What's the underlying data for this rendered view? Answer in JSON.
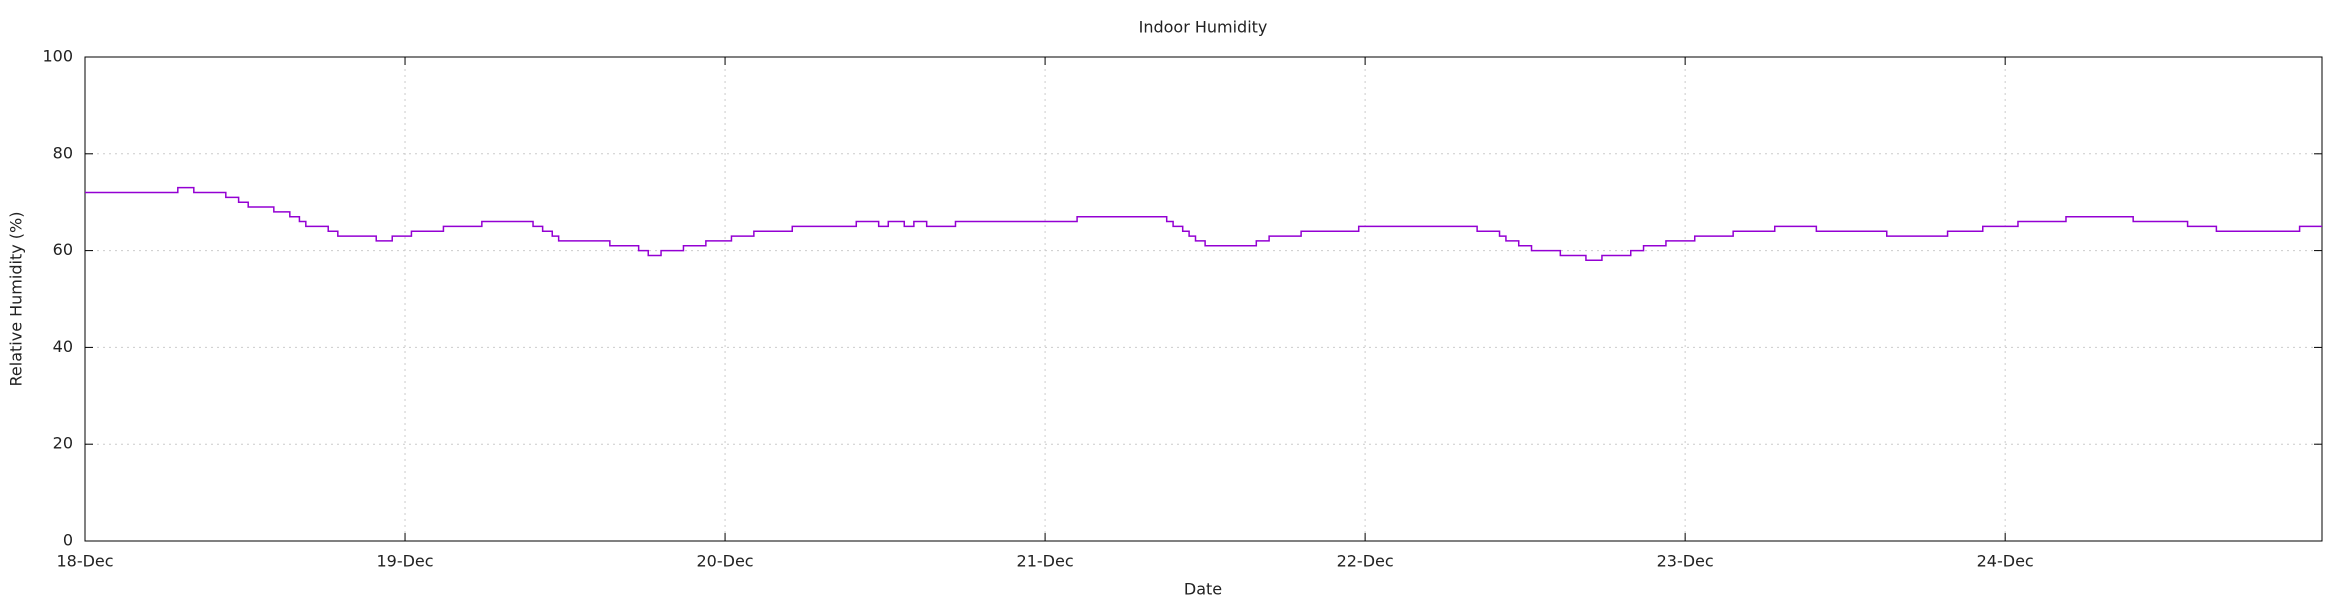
{
  "chart_data": {
    "type": "line",
    "title": "Indoor Humidity",
    "x_label": "Date",
    "y_label": "Relative Humidity (%)",
    "xlim": [
      0,
      6.99
    ],
    "ylim": [
      0,
      100
    ],
    "grid": true,
    "xticks": [
      {
        "value": 0,
        "label": "18-Dec"
      },
      {
        "value": 1,
        "label": "19-Dec"
      },
      {
        "value": 2,
        "label": "20-Dec"
      },
      {
        "value": 3,
        "label": "21-Dec"
      },
      {
        "value": 4,
        "label": "22-Dec"
      },
      {
        "value": 5,
        "label": "23-Dec"
      },
      {
        "value": 6,
        "label": "24-Dec"
      }
    ],
    "yticks": [
      0,
      20,
      40,
      60,
      80,
      100
    ],
    "series": [
      {
        "color": "#9400d3",
        "x": [
          0,
          0.29,
          0.29,
          0.34,
          0.34,
          0.44,
          0.44,
          0.48,
          0.48,
          0.51,
          0.51,
          0.59,
          0.59,
          0.64,
          0.64,
          0.67,
          0.67,
          0.69,
          0.69,
          0.76,
          0.76,
          0.79,
          0.79,
          0.91,
          0.91,
          0.96,
          0.96,
          1.02,
          1.02,
          1.12,
          1.12,
          1.24,
          1.24,
          1.4,
          1.4,
          1.43,
          1.43,
          1.46,
          1.46,
          1.48,
          1.48,
          1.64,
          1.64,
          1.73,
          1.73,
          1.76,
          1.76,
          1.8,
          1.8,
          1.87,
          1.87,
          1.94,
          1.94,
          2.02,
          2.02,
          2.09,
          2.09,
          2.21,
          2.21,
          2.41,
          2.41,
          2.48,
          2.48,
          2.51,
          2.51,
          2.56,
          2.56,
          2.59,
          2.59,
          2.63,
          2.63,
          2.72,
          2.72,
          3.1,
          3.1,
          3.38,
          3.38,
          3.4,
          3.4,
          3.43,
          3.43,
          3.45,
          3.45,
          3.47,
          3.47,
          3.5,
          3.5,
          3.66,
          3.66,
          3.7,
          3.7,
          3.8,
          3.8,
          3.98,
          3.98,
          4.35,
          4.35,
          4.42,
          4.42,
          4.44,
          4.44,
          4.48,
          4.48,
          4.52,
          4.52,
          4.61,
          4.61,
          4.69,
          4.69,
          4.74,
          4.74,
          4.83,
          4.83,
          4.87,
          4.87,
          4.94,
          4.94,
          5.03,
          5.03,
          5.15,
          5.15,
          5.28,
          5.28,
          5.41,
          5.41,
          5.63,
          5.63,
          5.82,
          5.82,
          5.93,
          5.93,
          6.04,
          6.04,
          6.19,
          6.19,
          6.4,
          6.4,
          6.57,
          6.57,
          6.66,
          6.66,
          6.92,
          6.92,
          6.99
        ],
        "values": [
          72,
          72,
          73,
          73,
          72,
          72,
          71,
          71,
          70,
          70,
          69,
          69,
          68,
          68,
          67,
          67,
          66,
          66,
          65,
          65,
          64,
          64,
          63,
          63,
          62,
          62,
          63,
          63,
          64,
          64,
          65,
          65,
          66,
          66,
          65,
          65,
          64,
          64,
          63,
          63,
          62,
          62,
          61,
          61,
          60,
          60,
          59,
          59,
          60,
          60,
          61,
          61,
          62,
          62,
          63,
          63,
          64,
          64,
          65,
          65,
          66,
          66,
          65,
          65,
          66,
          66,
          65,
          65,
          66,
          66,
          65,
          65,
          66,
          66,
          67,
          67,
          66,
          66,
          65,
          65,
          64,
          64,
          63,
          63,
          62,
          62,
          61,
          61,
          62,
          62,
          63,
          63,
          64,
          64,
          65,
          65,
          64,
          64,
          63,
          63,
          62,
          62,
          61,
          61,
          60,
          60,
          59,
          59,
          58,
          58,
          59,
          59,
          60,
          60,
          61,
          61,
          62,
          62,
          63,
          63,
          64,
          64,
          65,
          65,
          64,
          64,
          63,
          63,
          64,
          64,
          65,
          65,
          66,
          66,
          67,
          67,
          66,
          66,
          65,
          65,
          64,
          64,
          65,
          65
        ]
      }
    ]
  }
}
